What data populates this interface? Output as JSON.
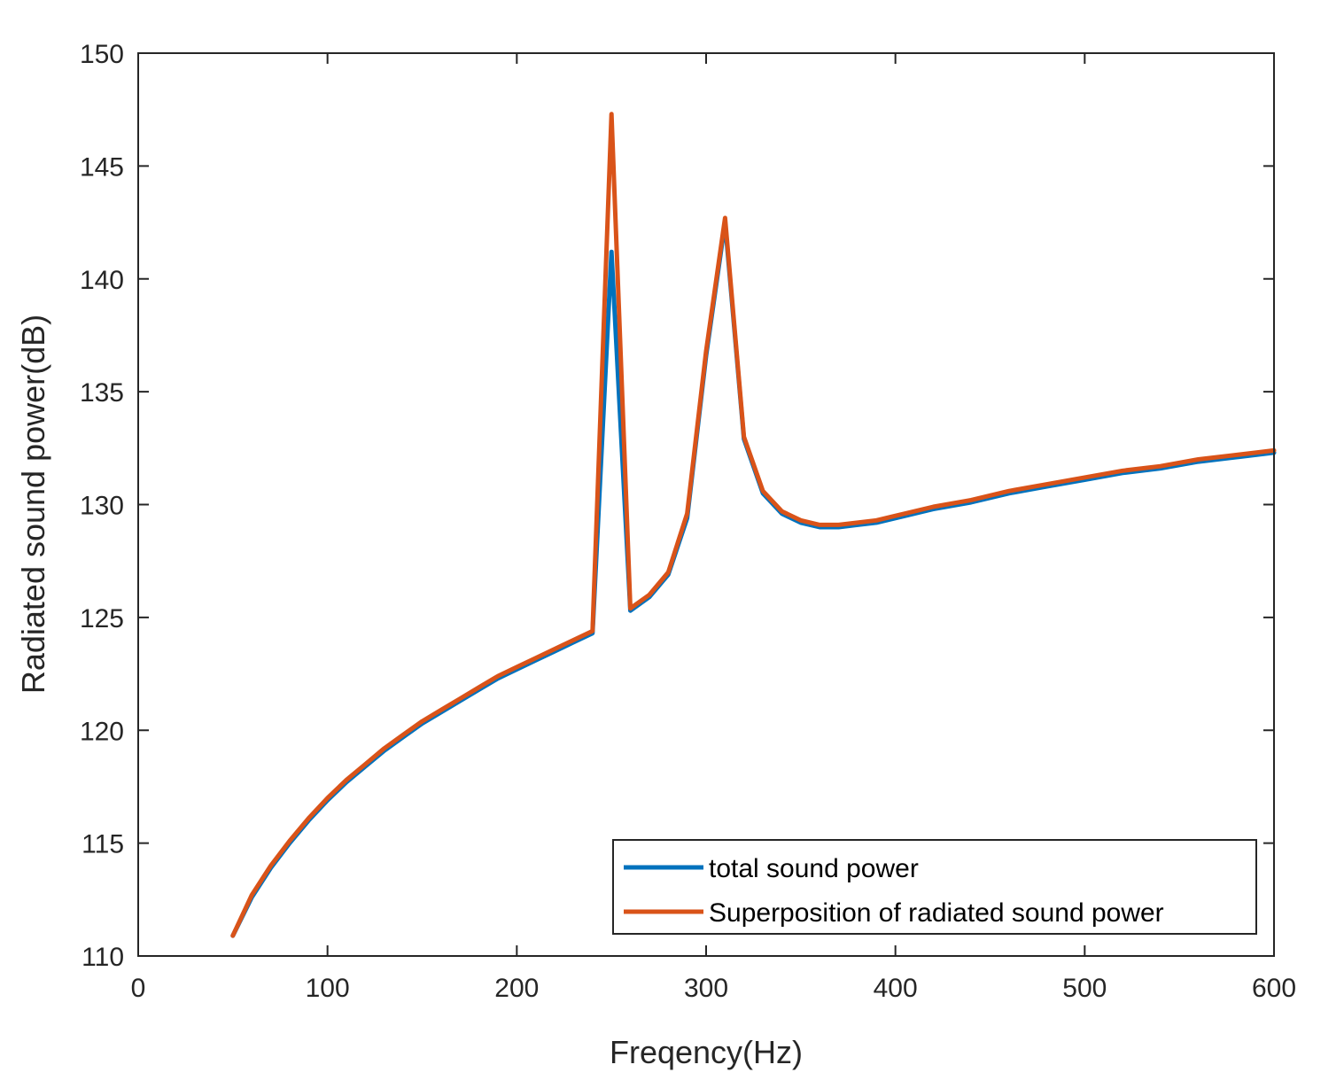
{
  "chart_data": {
    "type": "line",
    "title": "",
    "xlabel": "Freqency(Hz)",
    "ylabel": "Radiated sound power(dB)",
    "xlim": [
      0,
      600
    ],
    "ylim": [
      110,
      150
    ],
    "xticks": [
      0,
      100,
      200,
      300,
      400,
      500,
      600
    ],
    "yticks": [
      110,
      115,
      120,
      125,
      130,
      135,
      140,
      145,
      150
    ],
    "grid": false,
    "legend_position": "bottom-right",
    "series": [
      {
        "name": "total sound power",
        "color": "#0072BD",
        "x": [
          50,
          60,
          70,
          80,
          90,
          100,
          110,
          120,
          130,
          140,
          150,
          160,
          170,
          180,
          190,
          200,
          210,
          220,
          230,
          240,
          250,
          260,
          270,
          280,
          290,
          300,
          310,
          320,
          330,
          340,
          350,
          360,
          370,
          380,
          390,
          400,
          420,
          440,
          460,
          480,
          500,
          520,
          540,
          560,
          580,
          600
        ],
        "y": [
          110.9,
          112.6,
          113.9,
          115.0,
          116.0,
          116.9,
          117.7,
          118.4,
          119.1,
          119.7,
          120.3,
          120.8,
          121.3,
          121.8,
          122.3,
          122.7,
          123.1,
          123.5,
          123.9,
          124.3,
          141.2,
          125.3,
          125.9,
          126.9,
          129.4,
          136.6,
          142.5,
          132.9,
          130.5,
          129.6,
          129.2,
          129.0,
          129.0,
          129.1,
          129.2,
          129.4,
          129.8,
          130.1,
          130.5,
          130.8,
          131.1,
          131.4,
          131.6,
          131.9,
          132.1,
          132.3
        ]
      },
      {
        "name": "Superposition of radiated sound power",
        "color": "#D95319",
        "x": [
          50,
          60,
          70,
          80,
          90,
          100,
          110,
          120,
          130,
          140,
          150,
          160,
          170,
          180,
          190,
          200,
          210,
          220,
          230,
          240,
          250,
          260,
          270,
          280,
          290,
          300,
          310,
          320,
          330,
          340,
          350,
          360,
          370,
          380,
          390,
          400,
          420,
          440,
          460,
          480,
          500,
          520,
          540,
          560,
          580,
          600
        ],
        "y": [
          110.9,
          112.7,
          114.0,
          115.1,
          116.1,
          117.0,
          117.8,
          118.5,
          119.2,
          119.8,
          120.4,
          120.9,
          121.4,
          121.9,
          122.4,
          122.8,
          123.2,
          123.6,
          124.0,
          124.4,
          147.3,
          125.4,
          126.0,
          127.0,
          129.6,
          136.8,
          142.7,
          133.0,
          130.6,
          129.7,
          129.3,
          129.1,
          129.1,
          129.2,
          129.3,
          129.5,
          129.9,
          130.2,
          130.6,
          130.9,
          131.2,
          131.5,
          131.7,
          132.0,
          132.2,
          132.4
        ]
      }
    ]
  }
}
